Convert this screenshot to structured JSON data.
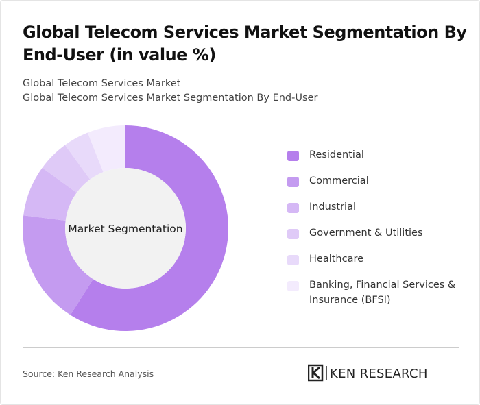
{
  "chart_data": {
    "type": "pie",
    "title": "Global Telecom Services Market Segmentation By End-User (in value %)",
    "subtitle": [
      "Global Telecom Services Market",
      "Global Telecom Services Market Segmentation By End-User"
    ],
    "center_label": "Market Segmentation",
    "categories": [
      "Residential",
      "Commercial",
      "Industrial",
      "Government & Utilities",
      "Healthcare",
      "Banking, Financial Services & Insurance (BFSI)"
    ],
    "values": [
      59,
      18,
      8,
      5,
      4,
      6
    ],
    "colors": [
      "#b57fec",
      "#c49bf0",
      "#d5b8f5",
      "#dfcaf7",
      "#e8dafa",
      "#f3ebfd"
    ],
    "source": "Source: Ken Research Analysis",
    "logo": "KEN RESEARCH"
  }
}
